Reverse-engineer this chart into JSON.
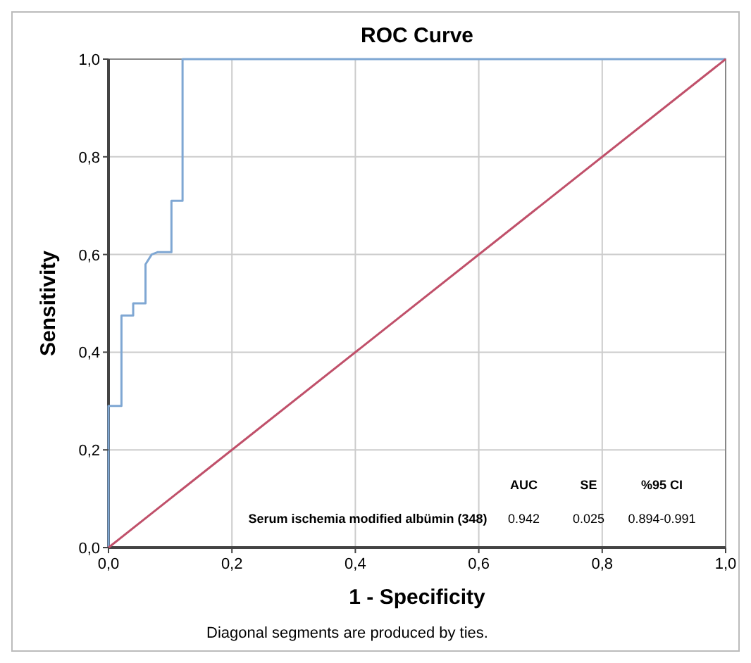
{
  "chart_data": {
    "type": "line",
    "title": "ROC Curve",
    "xlabel": "1 - Specificity",
    "ylabel": "Sensitivity",
    "xlim": [
      0,
      1
    ],
    "ylim": [
      0,
      1
    ],
    "xticks": [
      {
        "value": 0,
        "label": "0,0"
      },
      {
        "value": 0.2,
        "label": "0,2"
      },
      {
        "value": 0.4,
        "label": "0,4"
      },
      {
        "value": 0.6,
        "label": "0,6"
      },
      {
        "value": 0.8,
        "label": "0,8"
      },
      {
        "value": 1,
        "label": "1,0"
      }
    ],
    "yticks": [
      {
        "value": 0,
        "label": "0,0"
      },
      {
        "value": 0.2,
        "label": "0,2"
      },
      {
        "value": 0.4,
        "label": "0,4"
      },
      {
        "value": 0.6,
        "label": "0,6"
      },
      {
        "value": 0.8,
        "label": "0,8"
      },
      {
        "value": 1,
        "label": "1,0"
      }
    ],
    "grid": true,
    "marker": "none",
    "line_style": "solid",
    "series": [
      {
        "color": "#7fa7d3",
        "x": [
          0,
          0,
          0.021,
          0.021,
          0.04,
          0.04,
          0.06,
          0.06,
          0.07,
          0.08,
          0.102,
          0.102,
          0.12,
          0.12,
          1
        ],
        "values": [
          0,
          0.29,
          0.29,
          0.475,
          0.475,
          0.5,
          0.5,
          0.58,
          0.6,
          0.605,
          0.605,
          0.71,
          0.71,
          1,
          1
        ]
      },
      {
        "color": "#c0506a",
        "x": [
          0,
          1
        ],
        "values": [
          0,
          1
        ]
      }
    ],
    "annotations": [
      "AUC",
      "SE",
      "%95 CI",
      "Serum ischemia modified albümin (348)",
      "0.942",
      "0.025",
      "0.894-0.991",
      "Diagonal segments are produced by ties."
    ]
  }
}
